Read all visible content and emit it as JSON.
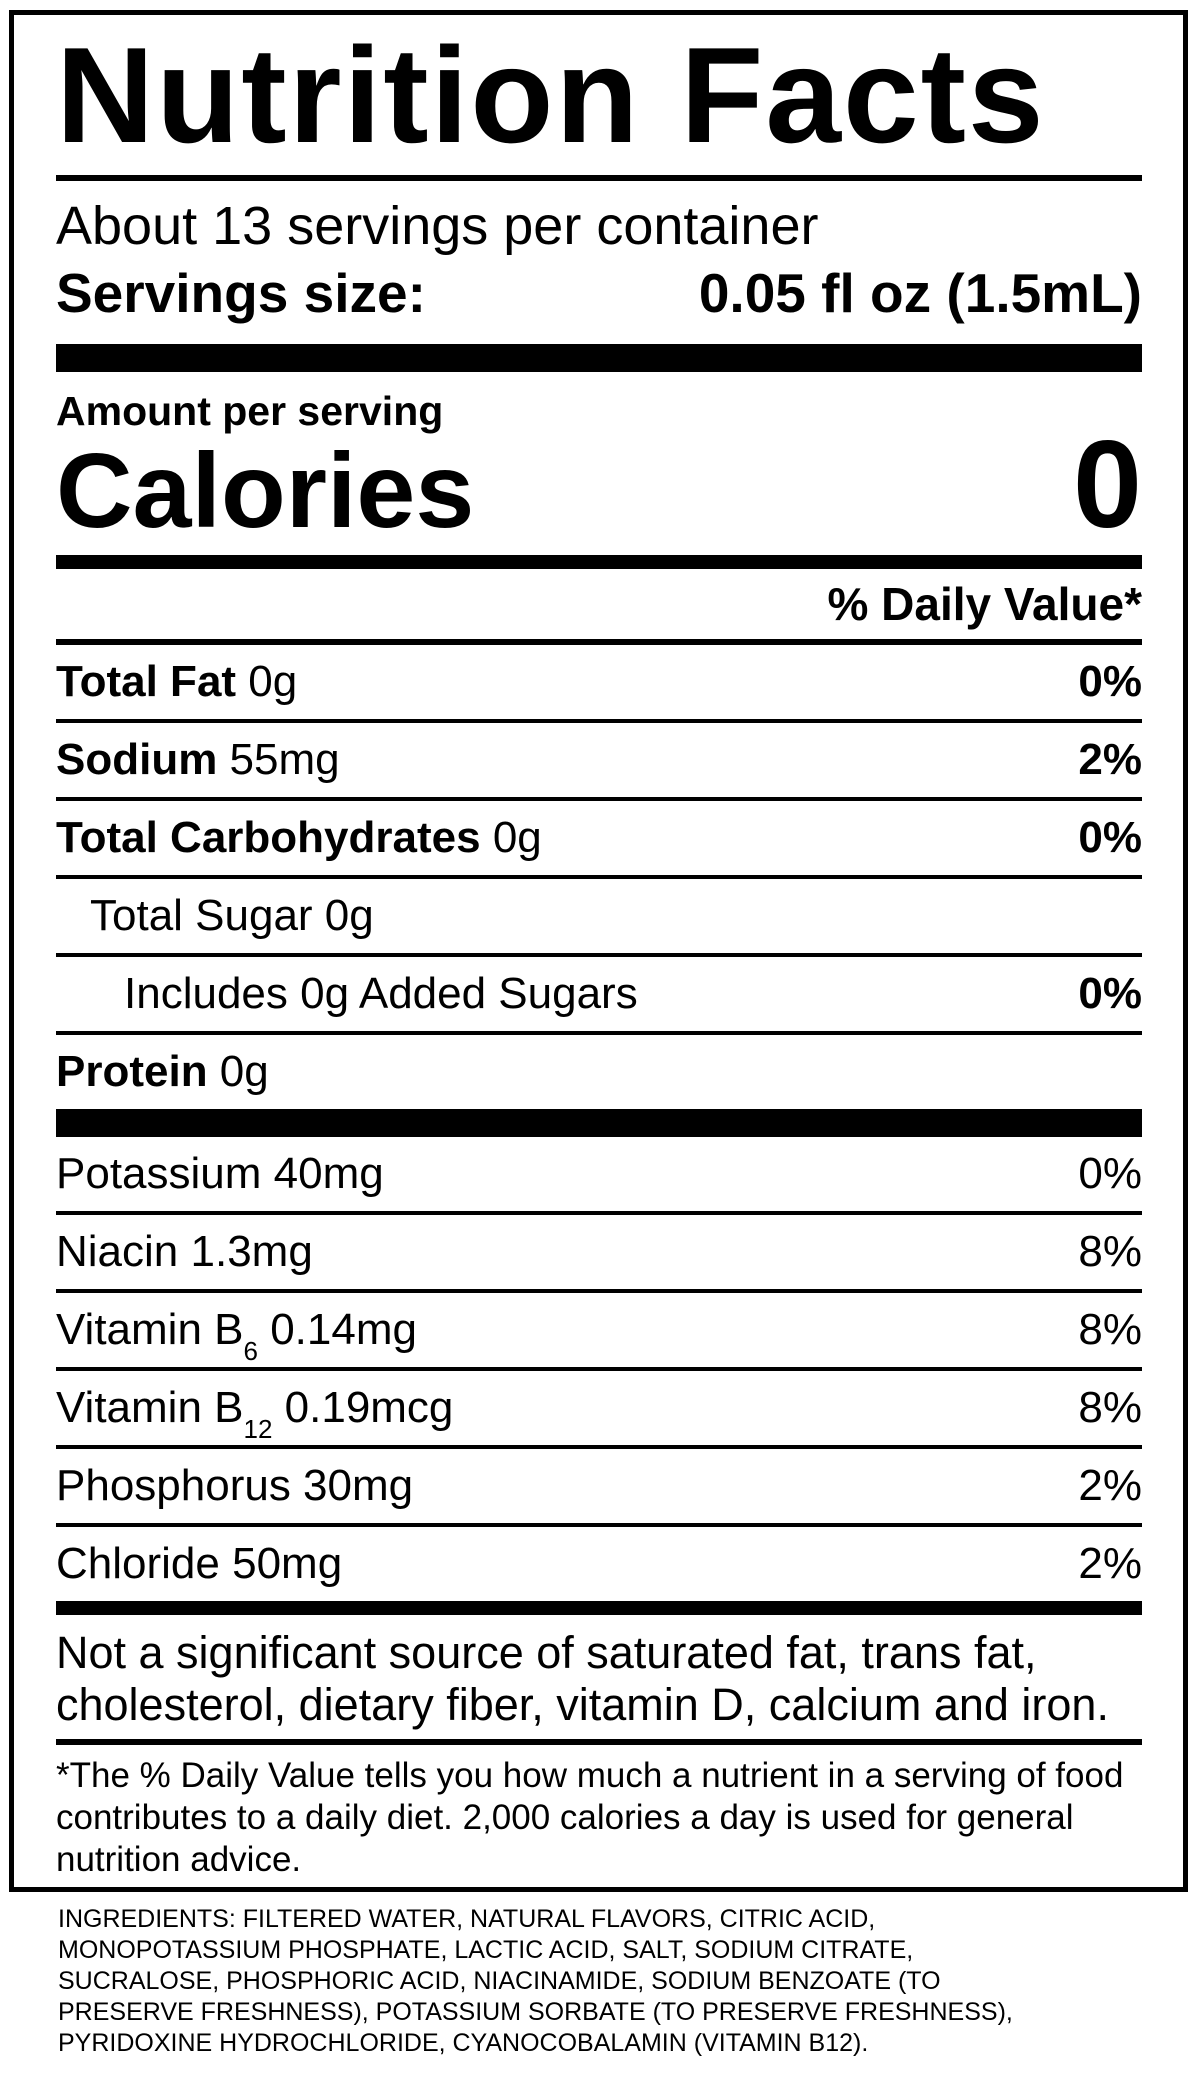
{
  "colors": {
    "text": "#000000",
    "background": "#ffffff"
  },
  "label": {
    "title": "Nutrition Facts",
    "servings_per_container": "About 13 servings per container",
    "serving_size_label": "Servings size:",
    "serving_size_value": "0.05 fl oz (1.5mL)",
    "amount_per_serving": "Amount per serving",
    "calories_label": "Calories",
    "calories_value": "0",
    "daily_value_header": "% Daily Value*",
    "rows": [
      {
        "name": "Total Fat",
        "bold_name": true,
        "amount": "0g",
        "dv": "0%",
        "indent": 0
      },
      {
        "name": "Sodium",
        "bold_name": true,
        "amount": "55mg",
        "dv": "2%",
        "indent": 0
      },
      {
        "name": "Total Carbohydrates",
        "bold_name": true,
        "amount": "0g",
        "dv": "0%",
        "indent": 0
      },
      {
        "name": "Total Sugar",
        "bold_name": false,
        "amount": "0g",
        "dv": "",
        "indent": 1
      },
      {
        "name": "Includes 0g Added Sugars",
        "bold_name": false,
        "amount": "",
        "dv": "0%",
        "indent": 2
      },
      {
        "name": "Protein",
        "bold_name": true,
        "amount": "0g",
        "dv": "",
        "indent": 0
      }
    ],
    "vitamins": [
      {
        "name": "Potassium",
        "amount": "40mg",
        "dv": "0%"
      },
      {
        "name": "Niacin",
        "amount": "1.3mg",
        "dv": "8%"
      },
      {
        "name": "Vitamin B",
        "subscript": "6",
        "amount": "0.14mg",
        "dv": "8%"
      },
      {
        "name": "Vitamin B",
        "subscript": "12",
        "amount": "0.19mcg",
        "dv": "8%"
      },
      {
        "name": "Phosphorus",
        "amount": "30mg",
        "dv": "2%"
      },
      {
        "name": "Chloride",
        "amount": "50mg",
        "dv": "2%"
      }
    ],
    "not_significant_lines": [
      "Not a significant source of saturated fat, trans fat,",
      "cholesterol, dietary fiber, vitamin D, calcium and iron."
    ],
    "footnote_lines": [
      "*The % Daily Value tells you how much a nutrient in a serving of food",
      "contributes to a daily diet. 2,000 calories a day is used for general",
      "nutrition advice."
    ]
  },
  "ingredients_lines": [
    "INGREDIENTS: FILTERED WATER, NATURAL FLAVORS, CITRIC ACID,",
    "MONOPOTASSIUM PHOSPHATE, LACTIC ACID, SALT, SODIUM CITRATE,",
    "SUCRALOSE, PHOSPHORIC ACID, NIACINAMIDE, SODIUM BENZOATE (TO",
    "PRESERVE FRESHNESS), POTASSIUM SORBATE (TO PRESERVE FRESHNESS),",
    "PYRIDOXINE HYDROCHLORIDE, CYANOCOBALAMIN (VITAMIN B12)."
  ]
}
